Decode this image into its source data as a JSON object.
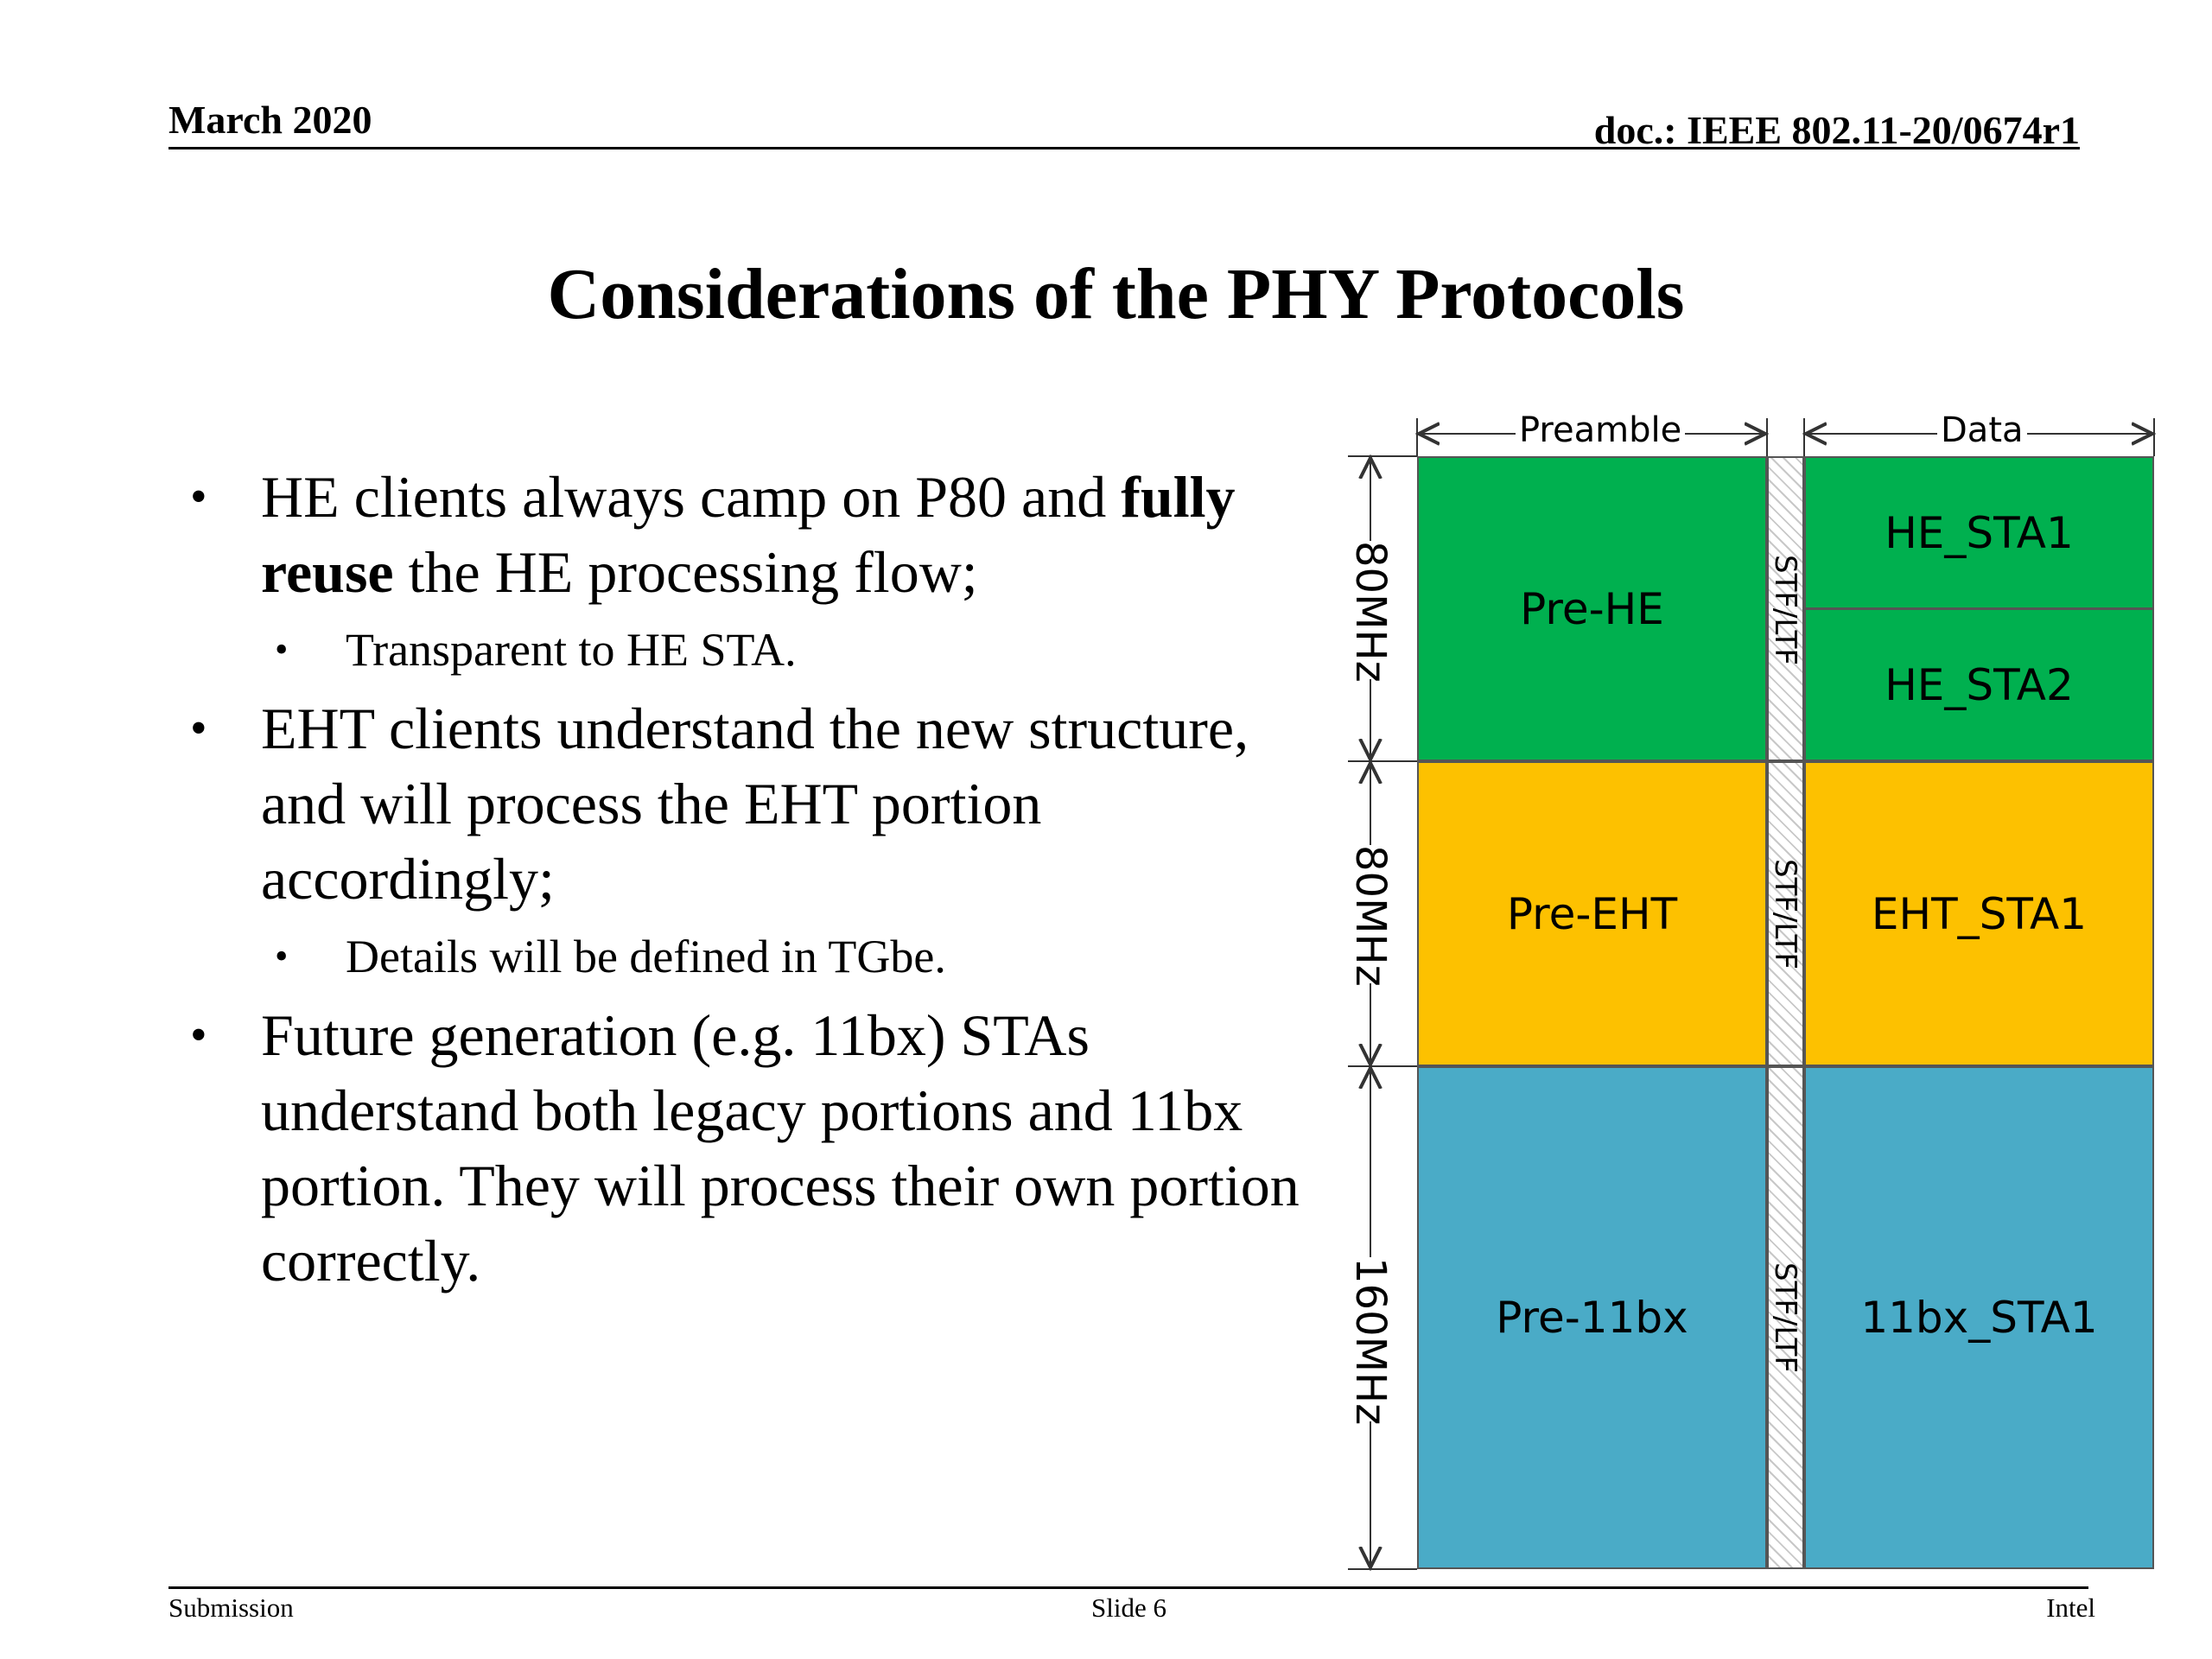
{
  "header": {
    "date": "March 2020",
    "doc_id": "doc.: IEEE 802.11-20/0674r1"
  },
  "title": "Considerations of the PHY Protocols",
  "bullets": [
    {
      "text_plain": "HE clients always camp on P80 and ",
      "text_bold": "fully reuse",
      "text_rest": " the HE processing flow;",
      "sub": "Transparent to HE STA."
    },
    {
      "text": "EHT clients understand the new structure, and will process the EHT portion accordingly;",
      "sub": "Details will be defined in TGbe."
    },
    {
      "text": "Future generation (e.g. 11bx) STAs understand both legacy portions and 11bx portion. They will process their own portion correctly."
    }
  ],
  "bullet_glyph": "•",
  "diagram": {
    "preamble_label": "Preamble",
    "data_label": "Data",
    "stf_label": "STF/LTF",
    "colors": {
      "green": "#00b04f",
      "yellow": "#fdc100",
      "blue": "#4aabc7"
    },
    "bands": [
      {
        "bandwidth": "80MHz",
        "preamble": "Pre-HE",
        "data": [
          "HE_STA1",
          "HE_STA2"
        ]
      },
      {
        "bandwidth": "80MHz",
        "preamble": "Pre-EHT",
        "data": [
          "EHT_STA1"
        ]
      },
      {
        "bandwidth": "160MHz",
        "preamble": "Pre-11bx",
        "data": [
          "11bx_STA1"
        ]
      }
    ]
  },
  "footer": {
    "left": "Submission",
    "center": "Slide 6",
    "right": "Intel"
  }
}
